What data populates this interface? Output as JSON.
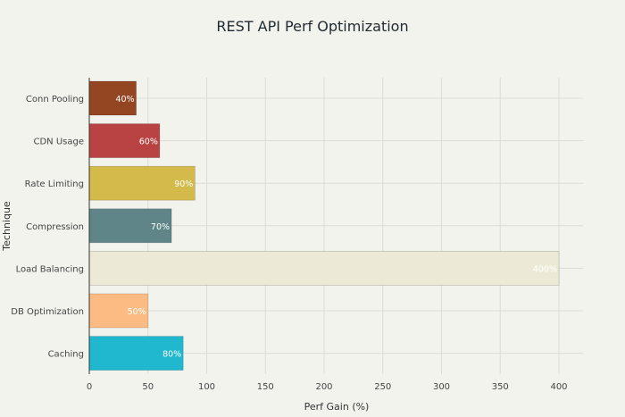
{
  "chart_data": {
    "type": "bar",
    "orientation": "horizontal",
    "title": "REST API Perf Optimization",
    "xlabel": "Perf Gain (%)",
    "ylabel": "Technique",
    "categories": [
      "Conn Pooling",
      "CDN Usage",
      "Rate Limiting",
      "Compression",
      "Load Balancing",
      "DB Optimization",
      "Caching"
    ],
    "values": [
      40,
      60,
      90,
      70,
      400,
      50,
      80
    ],
    "data_labels": [
      "40%",
      "60%",
      "90%",
      "70%",
      "400%",
      "50%",
      "80%"
    ],
    "colors": [
      "#944521",
      "#b94343",
      "#d3ba4a",
      "#5f8589",
      "#ecead6",
      "#fdbb84",
      "#1fb8cf"
    ],
    "xlim": [
      0,
      420
    ],
    "xticks": [
      0,
      50,
      100,
      150,
      200,
      250,
      300,
      350,
      400
    ],
    "grid": true
  }
}
